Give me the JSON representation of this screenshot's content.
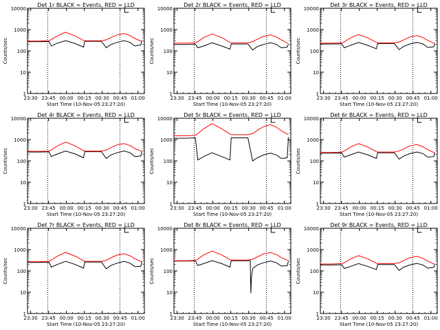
{
  "figure": {
    "xlabel": "Start Time (10-Nov-05 23:27:20)",
    "ylabel": "Counts/sec",
    "x_tick_labels": [
      "23:30",
      "23:45",
      "00:00",
      "00:15",
      "00:30",
      "00:45",
      "01:00"
    ],
    "x_tick_minutes": [
      2.67,
      17.67,
      32.67,
      47.67,
      62.67,
      77.67,
      92.67
    ],
    "x_range_minutes": [
      0,
      98
    ],
    "y_scale": "log",
    "y_range": [
      1,
      10000
    ],
    "y_tick_labels": [
      "1",
      "10",
      "100",
      "1000",
      "10000"
    ],
    "y_tick_values": [
      1,
      10,
      100,
      1000,
      10000
    ],
    "dotted_vlines_minutes": [
      17.0,
      77.5
    ],
    "marker_minute": 81.5,
    "series_colors": {
      "events": "#000000",
      "lld": "#ff0000"
    }
  },
  "chart_data": [
    {
      "type": "line",
      "title": "Det 1r BLACK = Events, RED = LLD",
      "x_range": [
        0,
        98
      ],
      "y_range": [
        1,
        10000
      ],
      "series": [
        {
          "name": "Events",
          "color": "#000000",
          "x": [
            0,
            10,
            18,
            20,
            25,
            32,
            40,
            47,
            48,
            55,
            62,
            66,
            70,
            75,
            81,
            86,
            90,
            95,
            96
          ],
          "y": [
            270,
            270,
            275,
            170,
            230,
            300,
            220,
            150,
            280,
            280,
            280,
            140,
            200,
            250,
            300,
            250,
            170,
            190,
            300
          ]
        },
        {
          "name": "LLD",
          "color": "#ff0000",
          "x": [
            0,
            10,
            18,
            20,
            25,
            32,
            40,
            47,
            48,
            55,
            62,
            66,
            70,
            75,
            81,
            86,
            90,
            95,
            96
          ],
          "y": [
            290,
            290,
            300,
            340,
            500,
            750,
            500,
            310,
            300,
            300,
            300,
            330,
            420,
            560,
            650,
            520,
            380,
            290,
            290
          ]
        }
      ]
    },
    {
      "type": "line",
      "title": "Det 2r BLACK = Events, RED = LLD",
      "x_range": [
        0,
        98
      ],
      "y_range": [
        1,
        10000
      ],
      "series": [
        {
          "name": "Events",
          "color": "#000000",
          "x": [
            0,
            10,
            18,
            20,
            25,
            32,
            40,
            47,
            48,
            55,
            62,
            66,
            70,
            75,
            81,
            86,
            90,
            95,
            96
          ],
          "y": [
            200,
            200,
            205,
            140,
            170,
            240,
            170,
            120,
            210,
            210,
            210,
            110,
            160,
            200,
            240,
            200,
            140,
            150,
            210
          ]
        },
        {
          "name": "LLD",
          "color": "#ff0000",
          "x": [
            0,
            10,
            18,
            20,
            25,
            32,
            40,
            47,
            48,
            55,
            62,
            66,
            70,
            75,
            81,
            86,
            90,
            95,
            96
          ],
          "y": [
            230,
            230,
            240,
            270,
            420,
            620,
            420,
            250,
            240,
            240,
            240,
            270,
            350,
            480,
            560,
            450,
            330,
            230,
            230
          ]
        }
      ]
    },
    {
      "type": "line",
      "title": "Det 3r BLACK = Events, RED = LLD",
      "x_range": [
        0,
        98
      ],
      "y_range": [
        1,
        10000
      ],
      "series": [
        {
          "name": "Events",
          "color": "#000000",
          "x": [
            0,
            10,
            18,
            20,
            25,
            32,
            40,
            47,
            48,
            55,
            62,
            66,
            70,
            75,
            81,
            86,
            90,
            95,
            96
          ],
          "y": [
            210,
            210,
            215,
            140,
            180,
            250,
            180,
            125,
            220,
            220,
            220,
            115,
            165,
            210,
            250,
            210,
            145,
            155,
            220
          ]
        },
        {
          "name": "LLD",
          "color": "#ff0000",
          "x": [
            0,
            10,
            18,
            20,
            25,
            32,
            40,
            47,
            48,
            55,
            62,
            66,
            70,
            75,
            81,
            86,
            90,
            95,
            96
          ],
          "y": [
            230,
            230,
            240,
            260,
            400,
            580,
            400,
            250,
            240,
            240,
            240,
            260,
            330,
            450,
            520,
            420,
            310,
            230,
            230
          ]
        }
      ]
    },
    {
      "type": "line",
      "title": "Det 4r BLACK = Events, RED = LLD",
      "x_range": [
        0,
        98
      ],
      "y_range": [
        1,
        10000
      ],
      "series": [
        {
          "name": "Events",
          "color": "#000000",
          "x": [
            0,
            10,
            18,
            20,
            25,
            32,
            40,
            47,
            48,
            55,
            62,
            66,
            70,
            75,
            81,
            86,
            90,
            95,
            96
          ],
          "y": [
            260,
            260,
            265,
            160,
            210,
            290,
            210,
            140,
            270,
            270,
            270,
            130,
            190,
            240,
            290,
            240,
            160,
            170,
            280
          ]
        },
        {
          "name": "LLD",
          "color": "#ff0000",
          "x": [
            0,
            10,
            18,
            20,
            25,
            32,
            40,
            47,
            48,
            55,
            62,
            66,
            70,
            75,
            81,
            86,
            90,
            95,
            96
          ],
          "y": [
            280,
            280,
            290,
            330,
            500,
            760,
            500,
            300,
            290,
            290,
            290,
            320,
            420,
            560,
            650,
            520,
            380,
            290,
            280
          ]
        }
      ]
    },
    {
      "type": "line",
      "title": "Det 5r BLACK = Events, RED = LLD",
      "x_range": [
        0,
        98
      ],
      "y_range": [
        1,
        10000
      ],
      "series": [
        {
          "name": "Events",
          "color": "#000000",
          "x": [
            0,
            10,
            18,
            20,
            25,
            32,
            40,
            47,
            48,
            55,
            62,
            66,
            70,
            75,
            81,
            86,
            90,
            95,
            96
          ],
          "y": [
            1150,
            1150,
            1200,
            110,
            160,
            240,
            160,
            110,
            1200,
            1200,
            1200,
            100,
            140,
            190,
            230,
            190,
            130,
            140,
            1300
          ]
        },
        {
          "name": "LLD",
          "color": "#ff0000",
          "x": [
            0,
            10,
            18,
            20,
            25,
            32,
            40,
            47,
            48,
            55,
            62,
            66,
            70,
            75,
            81,
            86,
            90,
            95,
            96
          ],
          "y": [
            1500,
            1500,
            1600,
            1900,
            3200,
            5600,
            3200,
            1800,
            1700,
            1700,
            1700,
            1900,
            2700,
            4000,
            5000,
            3800,
            2600,
            1800,
            1700
          ]
        }
      ]
    },
    {
      "type": "line",
      "title": "Det 6r BLACK = Events, RED = LLD",
      "x_range": [
        0,
        98
      ],
      "y_range": [
        1,
        10000
      ],
      "series": [
        {
          "name": "Events",
          "color": "#000000",
          "x": [
            0,
            10,
            18,
            20,
            25,
            32,
            40,
            47,
            48,
            55,
            62,
            66,
            70,
            75,
            81,
            86,
            90,
            95,
            96
          ],
          "y": [
            230,
            230,
            235,
            150,
            190,
            260,
            190,
            130,
            240,
            240,
            240,
            120,
            170,
            220,
            260,
            220,
            150,
            160,
            240
          ]
        },
        {
          "name": "LLD",
          "color": "#ff0000",
          "x": [
            0,
            10,
            18,
            20,
            25,
            32,
            40,
            47,
            48,
            55,
            62,
            66,
            70,
            75,
            81,
            86,
            90,
            95,
            96
          ],
          "y": [
            250,
            250,
            260,
            290,
            440,
            650,
            440,
            270,
            260,
            260,
            260,
            290,
            370,
            500,
            580,
            460,
            340,
            250,
            250
          ]
        }
      ]
    },
    {
      "type": "line",
      "title": "Det 7r BLACK = Events, RED = LLD",
      "x_range": [
        0,
        98
      ],
      "y_range": [
        1,
        10000
      ],
      "series": [
        {
          "name": "Events",
          "color": "#000000",
          "x": [
            0,
            10,
            18,
            20,
            25,
            32,
            40,
            47,
            48,
            55,
            62,
            66,
            70,
            75,
            81,
            86,
            90,
            95,
            96
          ],
          "y": [
            250,
            250,
            255,
            150,
            200,
            280,
            200,
            135,
            260,
            260,
            260,
            125,
            180,
            230,
            280,
            230,
            160,
            165,
            270
          ]
        },
        {
          "name": "LLD",
          "color": "#ff0000",
          "x": [
            0,
            10,
            18,
            20,
            25,
            32,
            40,
            47,
            48,
            55,
            62,
            66,
            70,
            75,
            81,
            86,
            90,
            95,
            96
          ],
          "y": [
            270,
            270,
            280,
            320,
            490,
            740,
            490,
            300,
            280,
            280,
            280,
            310,
            410,
            550,
            640,
            510,
            370,
            280,
            270
          ]
        }
      ]
    },
    {
      "type": "line",
      "title": "Det 8r BLACK = Events, RED = LLD",
      "x_range": [
        0,
        98
      ],
      "y_range": [
        1,
        10000
      ],
      "series": [
        {
          "name": "Events",
          "color": "#000000",
          "x": [
            0,
            10,
            18,
            20,
            25,
            32,
            40,
            47,
            48,
            55,
            62,
            64,
            64.5,
            65,
            66,
            70,
            75,
            81,
            86,
            90,
            95,
            96
          ],
          "y": [
            290,
            290,
            295,
            180,
            220,
            300,
            220,
            150,
            300,
            300,
            300,
            300,
            9,
            50,
            130,
            190,
            240,
            290,
            240,
            170,
            175,
            290
          ]
        },
        {
          "name": "LLD",
          "color": "#ff0000",
          "x": [
            0,
            10,
            18,
            20,
            25,
            32,
            40,
            47,
            48,
            55,
            62,
            66,
            70,
            75,
            81,
            86,
            90,
            95,
            96
          ],
          "y": [
            300,
            300,
            310,
            360,
            560,
            850,
            560,
            340,
            320,
            320,
            320,
            350,
            460,
            620,
            720,
            580,
            420,
            320,
            310
          ]
        }
      ]
    },
    {
      "type": "line",
      "title": "Det 9r BLACK = Events, RED = LLD",
      "x_range": [
        0,
        98
      ],
      "y_range": [
        1,
        10000
      ],
      "series": [
        {
          "name": "Events",
          "color": "#000000",
          "x": [
            0,
            10,
            18,
            20,
            25,
            32,
            40,
            47,
            48,
            55,
            62,
            66,
            70,
            75,
            81,
            86,
            90,
            95,
            96
          ],
          "y": [
            190,
            190,
            195,
            130,
            160,
            220,
            160,
            115,
            200,
            200,
            200,
            105,
            150,
            190,
            225,
            190,
            135,
            145,
            200
          ]
        },
        {
          "name": "LLD",
          "color": "#ff0000",
          "x": [
            0,
            10,
            18,
            20,
            25,
            32,
            40,
            47,
            48,
            55,
            62,
            66,
            70,
            75,
            81,
            86,
            90,
            95,
            96
          ],
          "y": [
            210,
            210,
            220,
            240,
            360,
            520,
            360,
            230,
            220,
            220,
            220,
            240,
            310,
            420,
            480,
            390,
            290,
            210,
            210
          ]
        }
      ]
    }
  ]
}
